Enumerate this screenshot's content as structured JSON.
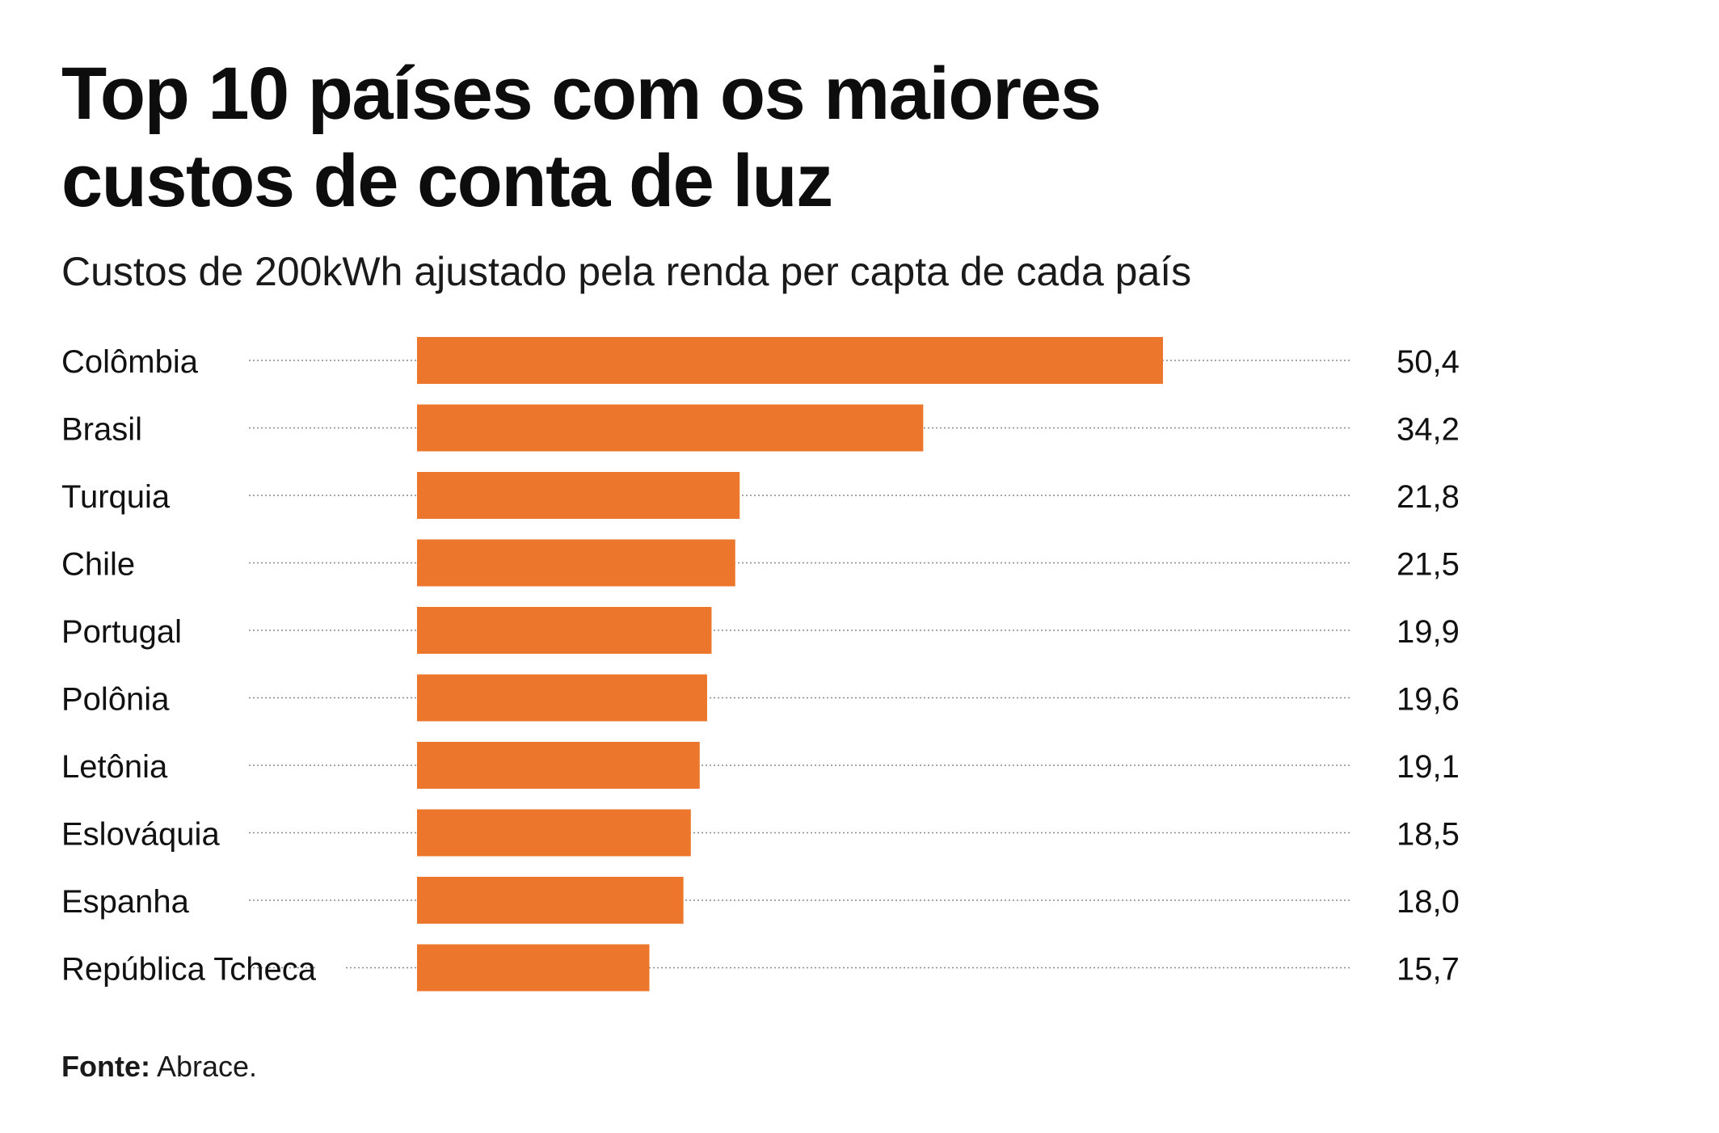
{
  "header": {
    "title_line1": "Top 10 países com os maiores",
    "title_line2": "custos de conta de luz",
    "subtitle": "Custos de 200kWh ajustado pela renda per capta de cada país"
  },
  "colors": {
    "bar": "#ec762b",
    "leader": "#8a8a8a",
    "text": "#111111"
  },
  "chart_data": {
    "type": "bar",
    "orientation": "horizontal",
    "title": "Top 10 países com os maiores custos de conta de luz",
    "subtitle": "Custos de 200kWh ajustado pela renda per capta de cada país",
    "xlabel": "",
    "ylabel": "",
    "xlim": [
      0,
      50.4
    ],
    "grid": false,
    "legend": "none",
    "categories": [
      "Colômbia",
      "Brasil",
      "Turquia",
      "Chile",
      "Portugal",
      "Polônia",
      "Letônia",
      "Eslováquia",
      "Espanha",
      "República Tcheca"
    ],
    "values": [
      50.4,
      34.2,
      21.8,
      21.5,
      19.9,
      19.6,
      19.1,
      18.5,
      18.0,
      15.7
    ],
    "value_labels": [
      "50,4",
      "34,2",
      "21,8",
      "21,5",
      "19,9",
      "19,6",
      "19,1",
      "18,5",
      "18,0",
      "15,7"
    ]
  },
  "footer": {
    "source_label": "Fonte:",
    "source_value": " Abrace."
  }
}
